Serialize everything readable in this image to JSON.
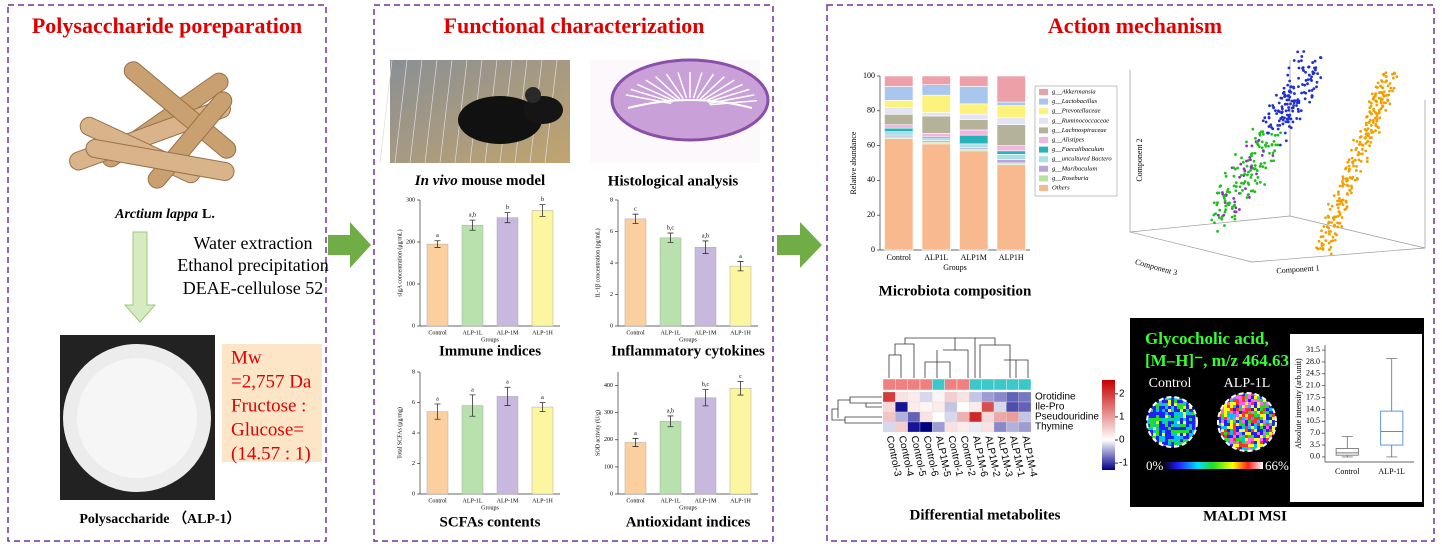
{
  "left_panel": {
    "title": "Polysaccharide poreparation",
    "source_name": "Arctium lappa",
    "source_authority": "L.",
    "steps": [
      "Water extraction",
      "Ethanol precipitation",
      "DEAE-cellulose 52"
    ],
    "properties": [
      "Mw",
      "=2,757 Da",
      "Fructose :",
      "Glucose=",
      "(14.57 : 1)"
    ],
    "product": "Polysaccharide （ALP-1）"
  },
  "middle_panel": {
    "title": "Functional characterization",
    "model_italic": "In vivo",
    "model_rest": " mouse model",
    "histology": "Histological analysis"
  },
  "right_panel": {
    "title": "Action mechanism"
  },
  "pca_plot": {
    "xlabel": "Component 1",
    "ylabel": "Component 2",
    "zlabel": "Component 3"
  },
  "maldi": {
    "compound": "Glycocholic acid,",
    "ion": "[M–H]⁻, m/z 464.63",
    "groups": [
      "Control",
      "ALP-1L"
    ],
    "scale_min": "0%",
    "scale_max": "66%",
    "caption": "MALDI MSI"
  },
  "chart_data": [
    {
      "type": "bar",
      "caption": "Immune indices",
      "ylabel": "sIgA concentration (μg/mL)",
      "xlabel": "Groups",
      "categories": [
        "Control",
        "ALP-1L",
        "ALP-1M",
        "ALP-1H"
      ],
      "values": [
        195,
        240,
        258,
        275
      ],
      "errors": [
        8,
        12,
        12,
        14
      ],
      "annotations": [
        "a",
        "a,b",
        "b",
        "b"
      ],
      "colors": [
        "#fccf9f",
        "#b9e1ad",
        "#c9b8dd",
        "#fdf6a0"
      ],
      "ylim": [
        0,
        300
      ],
      "yticks": [
        0,
        100,
        200,
        300
      ]
    },
    {
      "type": "bar",
      "caption": "Inflammatory cytokines",
      "ylabel": "IL-1β concentration (pg/mL)",
      "xlabel": "Groups",
      "categories": [
        "Control",
        "ALP-1L",
        "ALP-1M",
        "ALP-1H"
      ],
      "values": [
        6.8,
        5.6,
        5.0,
        3.8
      ],
      "errors": [
        0.3,
        0.3,
        0.4,
        0.3
      ],
      "annotations": [
        "c",
        "b,c",
        "a,b",
        "a"
      ],
      "colors": [
        "#fccf9f",
        "#b9e1ad",
        "#c9b8dd",
        "#fdf6a0"
      ],
      "ylim": [
        0,
        8
      ],
      "yticks": [
        0,
        2,
        4,
        6,
        8
      ]
    },
    {
      "type": "bar",
      "caption": "SCFAs contents",
      "ylabel": "Total SCFAs (μg/mg)",
      "xlabel": "Groups",
      "categories": [
        "Control",
        "ALP-1L",
        "ALP-1M",
        "ALP-1H"
      ],
      "values": [
        5.4,
        5.8,
        6.4,
        5.7
      ],
      "errors": [
        0.5,
        0.7,
        0.6,
        0.3
      ],
      "annotations": [
        "a",
        "a",
        "a",
        "a"
      ],
      "colors": [
        "#fccf9f",
        "#b9e1ad",
        "#c9b8dd",
        "#fdf6a0"
      ],
      "ylim": [
        0,
        8
      ],
      "yticks": [
        0,
        2,
        4,
        6,
        8
      ]
    },
    {
      "type": "bar",
      "caption": "Antioxidant indices",
      "ylabel": "SOD activity (U/g)",
      "xlabel": "Groups",
      "categories": [
        "Control",
        "ALP-1L",
        "ALP-1M",
        "ALP-1H"
      ],
      "values": [
        190,
        268,
        355,
        390
      ],
      "errors": [
        15,
        20,
        30,
        25
      ],
      "annotations": [
        "a",
        "a,b",
        "b,c",
        "c"
      ],
      "colors": [
        "#fccf9f",
        "#b9e1ad",
        "#c9b8dd",
        "#fdf6a0"
      ],
      "ylim": [
        0,
        450
      ],
      "yticks": [
        0,
        100,
        200,
        300,
        400
      ]
    },
    {
      "type": "stacked_bar",
      "caption": "Microbiota composition",
      "ylabel": "Relative abundance",
      "xlabel": "Groups",
      "categories": [
        "Control",
        "ALP1L",
        "ALP1M",
        "ALP1H"
      ],
      "ylim": [
        0,
        100
      ],
      "yticks": [
        0,
        20,
        40,
        60,
        80,
        100
      ],
      "series": [
        {
          "name": "g__Akkermansia",
          "color": "#eea0a8",
          "values": [
            6,
            5,
            6,
            15
          ]
        },
        {
          "name": "g__Lactobacillus",
          "color": "#a9c6ee",
          "values": [
            8,
            6,
            10,
            2
          ]
        },
        {
          "name": "g__Prevotellaceae",
          "color": "#fdf27c",
          "values": [
            4,
            10,
            6,
            7
          ]
        },
        {
          "name": "g__Ruminococcaceae",
          "color": "#e4e4f4",
          "values": [
            4,
            2,
            3,
            4
          ]
        },
        {
          "name": "g__Lachnospiraceae",
          "color": "#b5b29a",
          "values": [
            6,
            10,
            6,
            12
          ]
        },
        {
          "name": "g__Alistipes",
          "color": "#f0b5e0",
          "values": [
            2,
            2,
            3,
            3
          ]
        },
        {
          "name": "g__Faecalibaculum",
          "color": "#27b3b9",
          "values": [
            2,
            1,
            5,
            2
          ]
        },
        {
          "name": "g__uncultured Bactero",
          "color": "#a8e0e6",
          "values": [
            2,
            1,
            2,
            3
          ]
        },
        {
          "name": "g__Muribaculum",
          "color": "#b8a6d9",
          "values": [
            1,
            1,
            1,
            2
          ]
        },
        {
          "name": "g__Roseburia",
          "color": "#b6e3a0",
          "values": [
            1,
            1,
            1,
            1
          ]
        },
        {
          "name": "Others",
          "color": "#f9b98f",
          "values": [
            64,
            61,
            57,
            49
          ]
        }
      ]
    },
    {
      "type": "heatmap",
      "caption": "Differential metabolites",
      "rows": [
        "Orotidine",
        "Ile-Pro",
        "Pseudouridine",
        "Thymine"
      ],
      "columns": [
        "Control-3",
        "Control-4",
        "Control-5",
        "Control-6",
        "ALP1M-5",
        "Control-1",
        "Control-2",
        "ALP1M-6",
        "ALP1M-2",
        "ALP1M-3",
        "ALP1M-1",
        "ALP1M-4"
      ],
      "column_colors": [
        "#f08080",
        "#f08080",
        "#f08080",
        "#f08080",
        "#3cc8c8",
        "#f08080",
        "#f08080",
        "#3cc8c8",
        "#3cc8c8",
        "#3cc8c8",
        "#3cc8c8",
        "#3cc8c8"
      ],
      "values": [
        [
          2.0,
          0.3,
          0.2,
          -0.2,
          0.1,
          0.5,
          0.3,
          -0.3,
          -0.5,
          -0.6,
          -0.8,
          -0.7
        ],
        [
          0.4,
          -1.2,
          0.2,
          0.1,
          0.2,
          -0.3,
          0.0,
          0.2,
          1.8,
          -0.2,
          -0.9,
          -0.8
        ],
        [
          0.6,
          -0.4,
          -0.8,
          0.3,
          0.0,
          -0.2,
          0.8,
          2.2,
          0.4,
          0.9,
          1.0,
          -0.3
        ],
        [
          -0.2,
          0.5,
          -1.2,
          -1.4,
          -0.5,
          0.3,
          0.2,
          -0.1,
          0.3,
          -0.6,
          -0.4,
          -0.5
        ]
      ],
      "zlim": [
        -1.3,
        2.6
      ],
      "colorbar_ticks": [
        -1,
        0,
        1,
        2
      ]
    },
    {
      "type": "box",
      "ylabel": "Absolute intensity (arb.unit)",
      "categories": [
        "Control",
        "ALP-1L"
      ],
      "boxes": [
        {
          "min": 0,
          "q1": 0.5,
          "median": 1.2,
          "q3": 2.5,
          "max": 6
        },
        {
          "min": 0,
          "q1": 3.5,
          "median": 7.5,
          "q3": 13.5,
          "max": 29
        }
      ],
      "colors": [
        "#777777",
        "#4a90d9"
      ],
      "ylim": [
        -1.5,
        33
      ],
      "yticks": [
        {
          "value": 0,
          "label": "0.0"
        },
        3.5,
        {
          "value": 7,
          "label": "7.0"
        },
        10.5,
        {
          "value": 14,
          "label": "14.0"
        },
        17.5,
        {
          "value": 21,
          "label": "21.0"
        },
        24.5,
        {
          "value": 28,
          "label": "28.0"
        },
        31.5
      ]
    }
  ]
}
